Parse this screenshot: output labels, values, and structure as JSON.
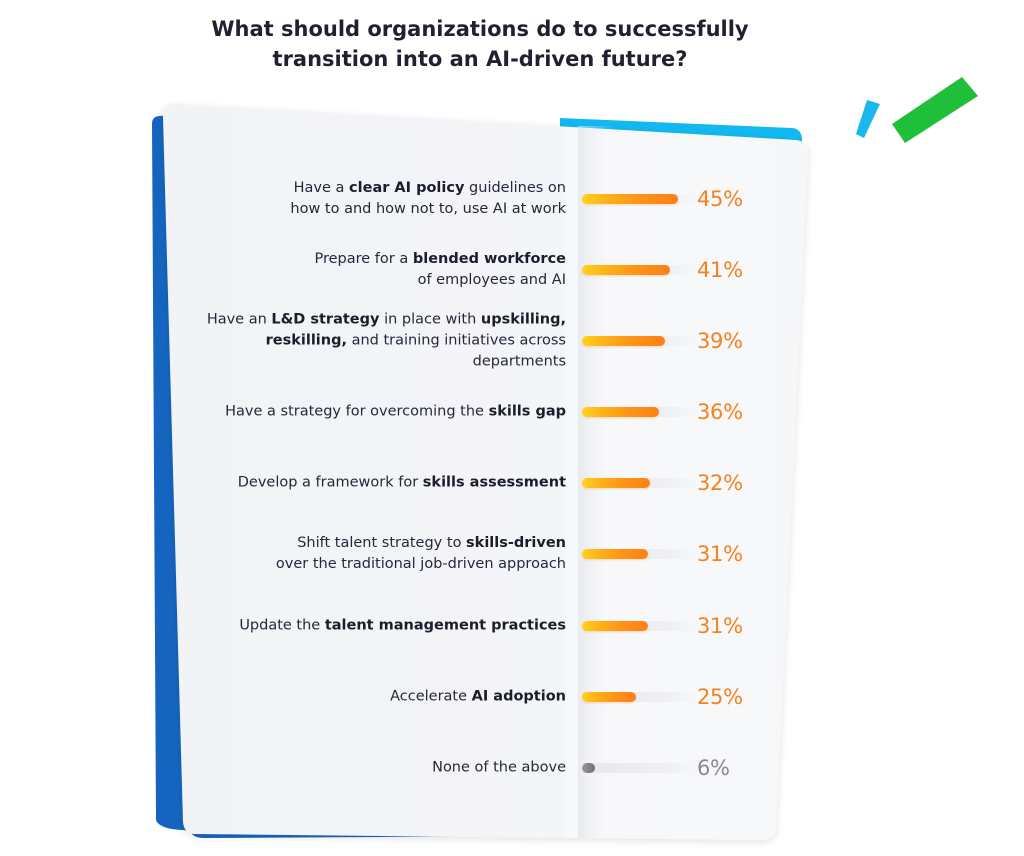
{
  "title_lines": [
    "What should organizations do to successfully",
    "transition into an AI-driven future?"
  ],
  "colors": {
    "bar_gradient": [
      "#ffd21a",
      "#ff7f16"
    ],
    "bar_none": "#707070",
    "pct_text": "#f5811f",
    "pct_text_none": "#8a8a8f",
    "accent_blue": "#1565c0",
    "accent_cyan": "#12b8f0",
    "accent_green": "#1fbf3a",
    "card": "#f3f4f7"
  },
  "chart_data": {
    "type": "bar",
    "orientation": "horizontal",
    "title": "What should organizations do to successfully transition into an AI-driven future?",
    "categories": [
      "Have a clear AI policy guidelines on how to and how not to, use AI at work",
      "Prepare for a blended workforce of employees and AI",
      "Have an L&D strategy in place with upskilling, reskilling, and training initiatives across departments",
      "Have a strategy for overcoming the skills gap",
      "Develop a framework for skills assessment",
      "Shift talent strategy to skills-driven over the traditional job-driven approach",
      "Update the talent management practices",
      "Accelerate AI adoption",
      "None of the above"
    ],
    "values": [
      45,
      41,
      39,
      36,
      32,
      31,
      31,
      25,
      6
    ],
    "value_labels": [
      "45%",
      "41%",
      "39%",
      "36%",
      "32%",
      "31%",
      "31%",
      "25%",
      "6%"
    ],
    "unit": "%",
    "xlim": [
      0,
      100
    ],
    "xlabel": "",
    "ylabel": "",
    "grid": false,
    "legend": "none",
    "label_parts": [
      [
        {
          "t": "Have a "
        },
        {
          "t": "clear AI policy",
          "b": true
        },
        {
          "t": " guidelines on"
        },
        {
          "br": true
        },
        {
          "t": "how to and how not to, use AI at work"
        }
      ],
      [
        {
          "t": "Prepare for a "
        },
        {
          "t": "blended workforce",
          "b": true
        },
        {
          "br": true
        },
        {
          "t": "of employees and AI"
        }
      ],
      [
        {
          "t": "Have an "
        },
        {
          "t": "L&D strategy",
          "b": true
        },
        {
          "t": " in place with "
        },
        {
          "t": "upskilling,",
          "b": true
        },
        {
          "br": true
        },
        {
          "t": "reskilling,",
          "b": true
        },
        {
          "t": " and training initiatives across"
        },
        {
          "br": true
        },
        {
          "t": "departments"
        }
      ],
      [
        {
          "t": "Have a strategy for overcoming the "
        },
        {
          "t": "skills gap",
          "b": true
        }
      ],
      [
        {
          "t": "Develop a framework for "
        },
        {
          "t": "skills assessment",
          "b": true
        }
      ],
      [
        {
          "t": "Shift talent strategy to "
        },
        {
          "t": "skills-driven",
          "b": true
        },
        {
          "br": true
        },
        {
          "t": "over the traditional job-driven approach"
        }
      ],
      [
        {
          "t": "Update the "
        },
        {
          "t": "talent management practices",
          "b": true
        }
      ],
      [
        {
          "t": "Accelerate "
        },
        {
          "t": "AI adoption",
          "b": true
        }
      ],
      [
        {
          "t": "None of the above"
        }
      ]
    ]
  }
}
